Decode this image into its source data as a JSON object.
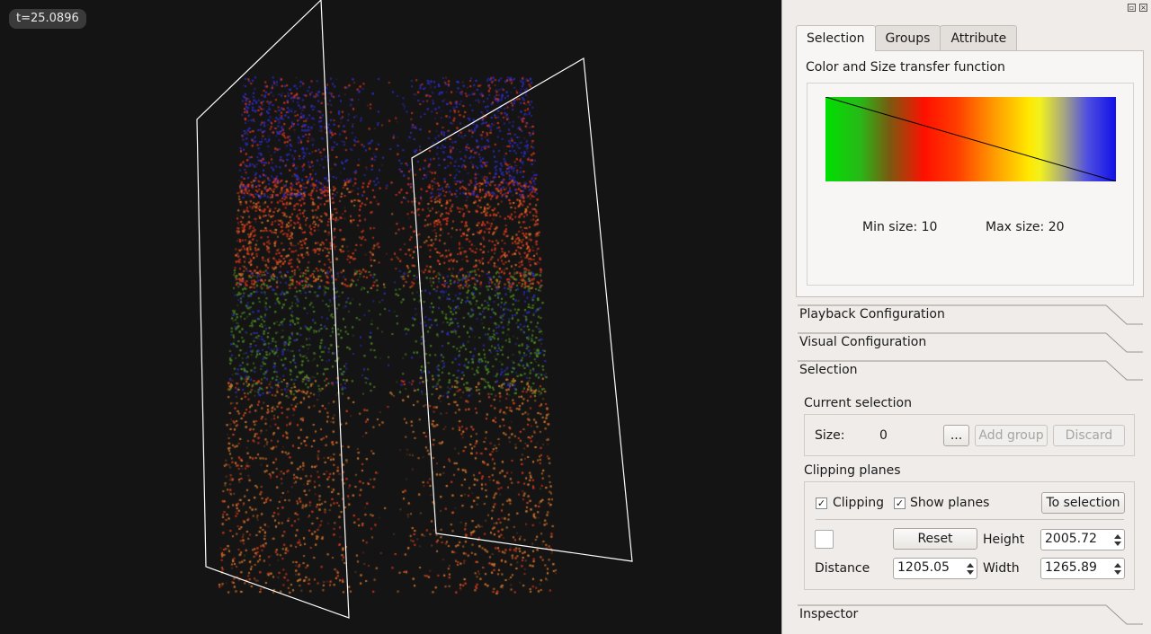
{
  "viewport": {
    "time_label": "t=25.0896"
  },
  "panel": {
    "tabs": [
      {
        "label": "Selection",
        "active": true
      },
      {
        "label": "Groups",
        "active": false
      },
      {
        "label": "Attribute",
        "active": false
      }
    ],
    "transfer_function": {
      "title": "Color and Size transfer function",
      "min_size_label": "Min size: 10",
      "max_size_label": "Max size: 20"
    },
    "sections": {
      "playback": "Playback Configuration",
      "visual": "Visual Configuration",
      "selection": "Selection",
      "inspector": "Inspector"
    },
    "current_selection": {
      "title": "Current selection",
      "size_label": "Size:",
      "size_value": "0",
      "more_button": "...",
      "add_group_button": "Add group",
      "discard_button": "Discard"
    },
    "clipping_planes": {
      "title": "Clipping planes",
      "clipping_label": "Clipping",
      "clipping_checked": true,
      "show_planes_label": "Show planes",
      "show_planes_checked": true,
      "to_selection_button": "To selection",
      "reset_button": "Reset",
      "height_label": "Height",
      "height_value": "2005.72",
      "distance_label": "Distance",
      "distance_value": "1205.05",
      "width_label": "Width",
      "width_value": "1265.89"
    }
  },
  "colors": {
    "viewport_bg": "#141414",
    "panel_bg": "#efecea",
    "particle_blue": "#3030c0",
    "particle_red": "#d83a20",
    "particle_green": "#4e8a2a",
    "particle_orange": "#d87a30"
  }
}
